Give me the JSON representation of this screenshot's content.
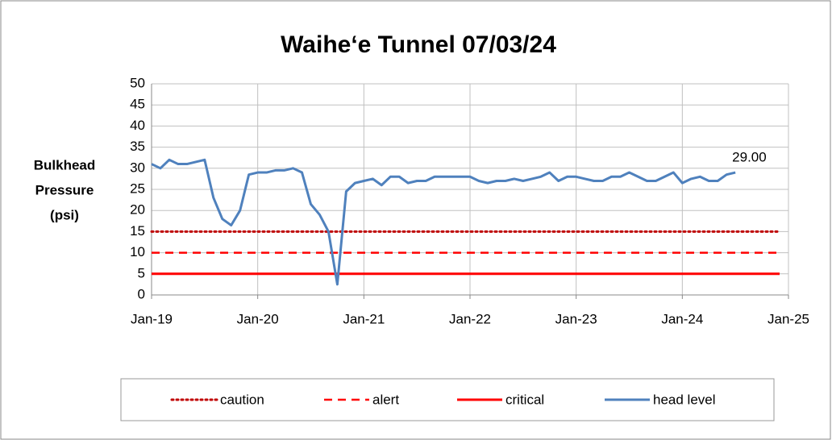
{
  "chart_data": {
    "type": "line",
    "title": "Waihe‘e Tunnel 07/03/24",
    "ylabel": [
      "Bulkhead",
      "Pressure",
      "(psi)"
    ],
    "xlim": [
      "2019-01",
      "2025-01"
    ],
    "xticks": [
      {
        "value": "2019-01",
        "label": "Jan-19"
      },
      {
        "value": "2020-01",
        "label": "Jan-20"
      },
      {
        "value": "2021-01",
        "label": "Jan-21"
      },
      {
        "value": "2022-01",
        "label": "Jan-22"
      },
      {
        "value": "2023-01",
        "label": "Jan-23"
      },
      {
        "value": "2024-01",
        "label": "Jan-24"
      },
      {
        "value": "2025-01",
        "label": "Jan-25"
      }
    ],
    "ylim": [
      0,
      50
    ],
    "yticks": [
      0,
      5,
      10,
      15,
      20,
      25,
      30,
      35,
      40,
      45,
      50
    ],
    "grid": true,
    "legend": "bottom",
    "series": [
      {
        "name": "caution",
        "color": "#c00000",
        "dash": "dotted",
        "x": [
          "2019-01",
          "2024-12"
        ],
        "values": [
          15,
          15
        ]
      },
      {
        "name": "alert",
        "color": "#ff0000",
        "dash": "dashed",
        "x": [
          "2019-01",
          "2024-12"
        ],
        "values": [
          10,
          10
        ]
      },
      {
        "name": "critical",
        "color": "#ff0000",
        "dash": "solid",
        "x": [
          "2019-01",
          "2024-12"
        ],
        "values": [
          5,
          5
        ]
      },
      {
        "name": "head level",
        "color": "#4f81bd",
        "dash": "solid",
        "x": [
          "2019-01",
          "2019-02",
          "2019-03",
          "2019-04",
          "2019-05",
          "2019-06",
          "2019-07",
          "2019-08",
          "2019-09",
          "2019-10",
          "2019-11",
          "2019-12",
          "2020-01",
          "2020-02",
          "2020-03",
          "2020-04",
          "2020-05",
          "2020-06",
          "2020-07",
          "2020-08",
          "2020-09",
          "2020-10",
          "2020-11",
          "2020-12",
          "2021-01",
          "2021-02",
          "2021-03",
          "2021-04",
          "2021-05",
          "2021-06",
          "2021-07",
          "2021-08",
          "2021-09",
          "2021-10",
          "2021-11",
          "2021-12",
          "2022-01",
          "2022-02",
          "2022-03",
          "2022-04",
          "2022-05",
          "2022-06",
          "2022-07",
          "2022-08",
          "2022-09",
          "2022-10",
          "2022-11",
          "2022-12",
          "2023-01",
          "2023-02",
          "2023-03",
          "2023-04",
          "2023-05",
          "2023-06",
          "2023-07",
          "2023-08",
          "2023-09",
          "2023-10",
          "2023-11",
          "2023-12",
          "2024-01",
          "2024-02",
          "2024-03",
          "2024-04",
          "2024-05",
          "2024-06",
          "2024-07"
        ],
        "values": [
          31,
          30,
          32,
          31,
          31,
          31.5,
          32,
          23,
          18,
          16.5,
          20,
          28.5,
          29,
          29,
          29.5,
          29.5,
          30,
          29,
          21.5,
          19,
          15,
          2.5,
          24.5,
          26.5,
          27,
          27.5,
          26,
          28,
          28,
          26.5,
          27,
          27,
          28,
          28,
          28,
          28,
          28,
          27,
          26.5,
          27,
          27,
          27.5,
          27,
          27.5,
          28,
          29,
          27,
          28,
          28,
          27.5,
          27,
          27,
          28,
          28,
          29,
          28,
          27,
          27,
          28,
          29,
          26.5,
          27.5,
          28,
          27,
          27,
          28.5,
          29
        ],
        "value_labels": [
          null,
          null,
          null,
          null,
          null,
          null,
          null,
          null,
          null,
          null,
          null,
          null,
          null,
          null,
          null,
          null,
          null,
          null,
          null,
          null,
          null,
          null,
          null,
          null,
          null,
          null,
          null,
          null,
          null,
          null,
          null,
          null,
          null,
          null,
          null,
          null,
          null,
          null,
          null,
          null,
          null,
          null,
          null,
          null,
          null,
          null,
          null,
          null,
          null,
          null,
          null,
          null,
          null,
          null,
          null,
          null,
          null,
          null,
          null,
          null,
          null,
          null,
          null,
          null,
          null,
          null,
          "29.00"
        ]
      }
    ]
  }
}
